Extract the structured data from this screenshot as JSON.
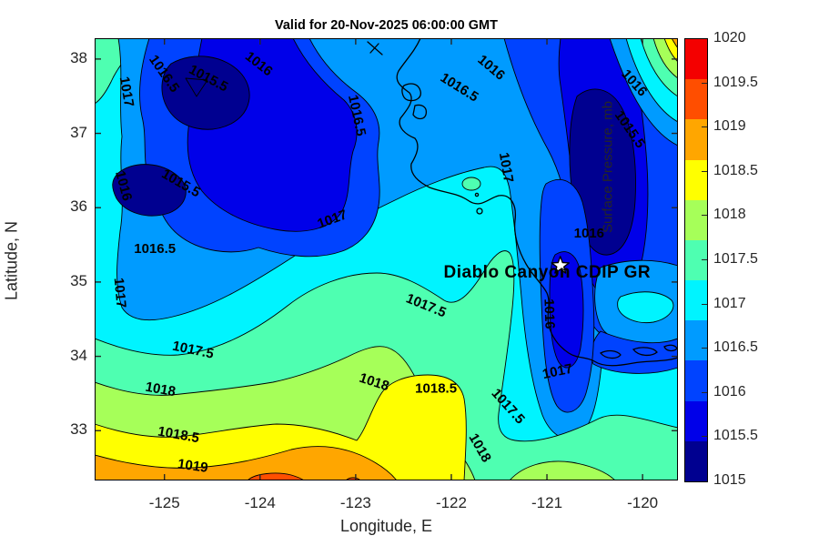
{
  "title": "Valid for 20-Nov-2025 06:00:00 GMT",
  "axes": {
    "xlabel": "Longitude, E",
    "ylabel": "Latitude, N",
    "x_ticks": [
      -125,
      -124,
      -123,
      -122,
      -121,
      -120
    ],
    "y_ticks": [
      38,
      37,
      36,
      35,
      34,
      33
    ]
  },
  "colorbar": {
    "title": "Surface Pressure, mb",
    "tick_labels": [
      "1020",
      "1019.5",
      "1019",
      "1018.5",
      "1018",
      "1017.5",
      "1017",
      "1016.5",
      "1016",
      "1015.5",
      "1015"
    ],
    "colors_bottom_to_top": [
      "#000090",
      "#0000E9",
      "#0043FF",
      "#009BFF",
      "#00F4FF",
      "#4EFFB1",
      "#A6FF59",
      "#FFFF00",
      "#FFA600",
      "#FF4E00",
      "#F40000"
    ]
  },
  "chart_data": {
    "type": "heatmap",
    "subtype": "filled-contour-map",
    "title": "Valid for 20-Nov-2025 06:00:00 GMT",
    "variable": "Surface Pressure, mb",
    "xlabel": "Longitude, E",
    "ylabel": "Latitude, N",
    "lon_range": [
      -125.73,
      -119.63
    ],
    "lat_range": [
      32.33,
      38.28
    ],
    "contour_interval_mb": 0.5,
    "levels_mb": [
      1015,
      1015.5,
      1016,
      1016.5,
      1017,
      1017.5,
      1018,
      1018.5,
      1019,
      1019.5,
      1020
    ],
    "level_colors": [
      "#000090",
      "#0000E9",
      "#0043FF",
      "#009BFF",
      "#00F4FF",
      "#4EFFB1",
      "#A6FF59",
      "#FFFF00",
      "#FFA600",
      "#FF4E00",
      "#F40000"
    ],
    "features": [
      "California coastline",
      "San Francisco Bay",
      "Monterey Bay",
      "Point Conception",
      "Channel Islands"
    ],
    "pressure_pattern": {
      "lows_below_1015_5_mb": [
        {
          "lon": -124.2,
          "lat": 37.1,
          "note": "northwest offshore low cells"
        },
        {
          "lon": -120.4,
          "lat": 36.4,
          "note": "northeast inland low cell"
        }
      ],
      "high_above_1019_mb": {
        "region": "southern edge of map",
        "lat_below": 32.7
      }
    },
    "contour_labels": [
      {
        "t": "1017",
        "lon": -125.44,
        "lat": 37.55,
        "rot": 80
      },
      {
        "t": "1016.5",
        "lon": -125.04,
        "lat": 37.77,
        "rot": 55
      },
      {
        "t": "1015.5",
        "lon": -124.56,
        "lat": 37.69,
        "rot": 28
      },
      {
        "t": "1016",
        "lon": -124.04,
        "lat": 37.89,
        "rot": 38
      },
      {
        "t": "1016",
        "lon": -125.47,
        "lat": 36.28,
        "rot": 75
      },
      {
        "t": "1015.5",
        "lon": -124.85,
        "lat": 36.28,
        "rot": 30
      },
      {
        "t": "1016.5",
        "lon": -123.03,
        "lat": 37.23,
        "rot": 78
      },
      {
        "t": "1016.5",
        "lon": -121.94,
        "lat": 37.57,
        "rot": 32
      },
      {
        "t": "1016",
        "lon": -121.61,
        "lat": 37.84,
        "rot": 40
      },
      {
        "t": "1016",
        "lon": -120.12,
        "lat": 37.64,
        "rot": 48
      },
      {
        "t": "1015.5",
        "lon": -120.17,
        "lat": 37.02,
        "rot": 55
      },
      {
        "t": "1017",
        "lon": -121.47,
        "lat": 36.53,
        "rot": 80
      },
      {
        "t": "1016",
        "lon": -120.56,
        "lat": 35.6,
        "rot": 0
      },
      {
        "t": "1017",
        "lon": -123.23,
        "lat": 35.79,
        "rot": -20
      },
      {
        "t": "1016.5",
        "lon": -125.1,
        "lat": 35.39,
        "rot": 0
      },
      {
        "t": "1017",
        "lon": -125.51,
        "lat": 34.85,
        "rot": 85
      },
      {
        "t": "1017.5",
        "lon": -124.71,
        "lat": 34.03,
        "rot": 12
      },
      {
        "t": "1018",
        "lon": -125.05,
        "lat": 33.5,
        "rot": 10
      },
      {
        "t": "1017.5",
        "lon": -122.28,
        "lat": 34.63,
        "rot": 22
      },
      {
        "t": "1016",
        "lon": -121.02,
        "lat": 34.57,
        "rot": 88
      },
      {
        "t": "1017",
        "lon": -120.88,
        "lat": 33.74,
        "rot": -12
      },
      {
        "t": "1017.5",
        "lon": -121.44,
        "lat": 33.29,
        "rot": 48
      },
      {
        "t": "1018",
        "lon": -121.74,
        "lat": 32.74,
        "rot": 60
      },
      {
        "t": "1018",
        "lon": -122.82,
        "lat": 33.6,
        "rot": 18
      },
      {
        "t": "1018.5",
        "lon": -122.16,
        "lat": 33.51,
        "rot": 0
      },
      {
        "t": "1018.5",
        "lon": -124.86,
        "lat": 32.89,
        "rot": 10
      },
      {
        "t": "1019",
        "lon": -124.71,
        "lat": 32.47,
        "rot": 8
      }
    ],
    "annotation": {
      "label": "Diablo Canyon CDIP GR",
      "marker": "star",
      "marker_lon": -120.86,
      "marker_lat": 35.22,
      "text_lon": -122.08,
      "text_lat": 35.06
    }
  }
}
